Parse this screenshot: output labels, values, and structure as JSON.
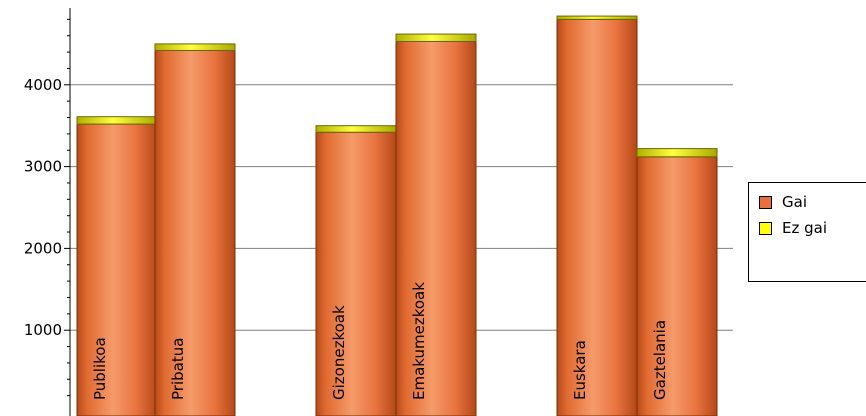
{
  "chart_data": {
    "type": "bar",
    "stacked": true,
    "categories": [
      "Publikoa",
      "Pribatua",
      "Gizonezkoak",
      "Emakumezkoak",
      "Euskara",
      "Gaztelania"
    ],
    "groups": [
      [
        "Publikoa",
        "Pribatua"
      ],
      [
        "Gizonezkoak",
        "Emakumezkoak"
      ],
      [
        "Euskara",
        "Gaztelania"
      ]
    ],
    "series": [
      {
        "name": "Gai",
        "values": [
          3520,
          4420,
          3420,
          4530,
          4800,
          3120
        ],
        "color": "#e8703a"
      },
      {
        "name": "Ez gai",
        "values": [
          90,
          80,
          80,
          90,
          40,
          100
        ],
        "color": "#ffff00"
      }
    ],
    "ylim": [
      0,
      5000
    ],
    "yticks": [
      1000,
      2000,
      3000,
      4000
    ],
    "grid": true,
    "legend_position": "right"
  }
}
